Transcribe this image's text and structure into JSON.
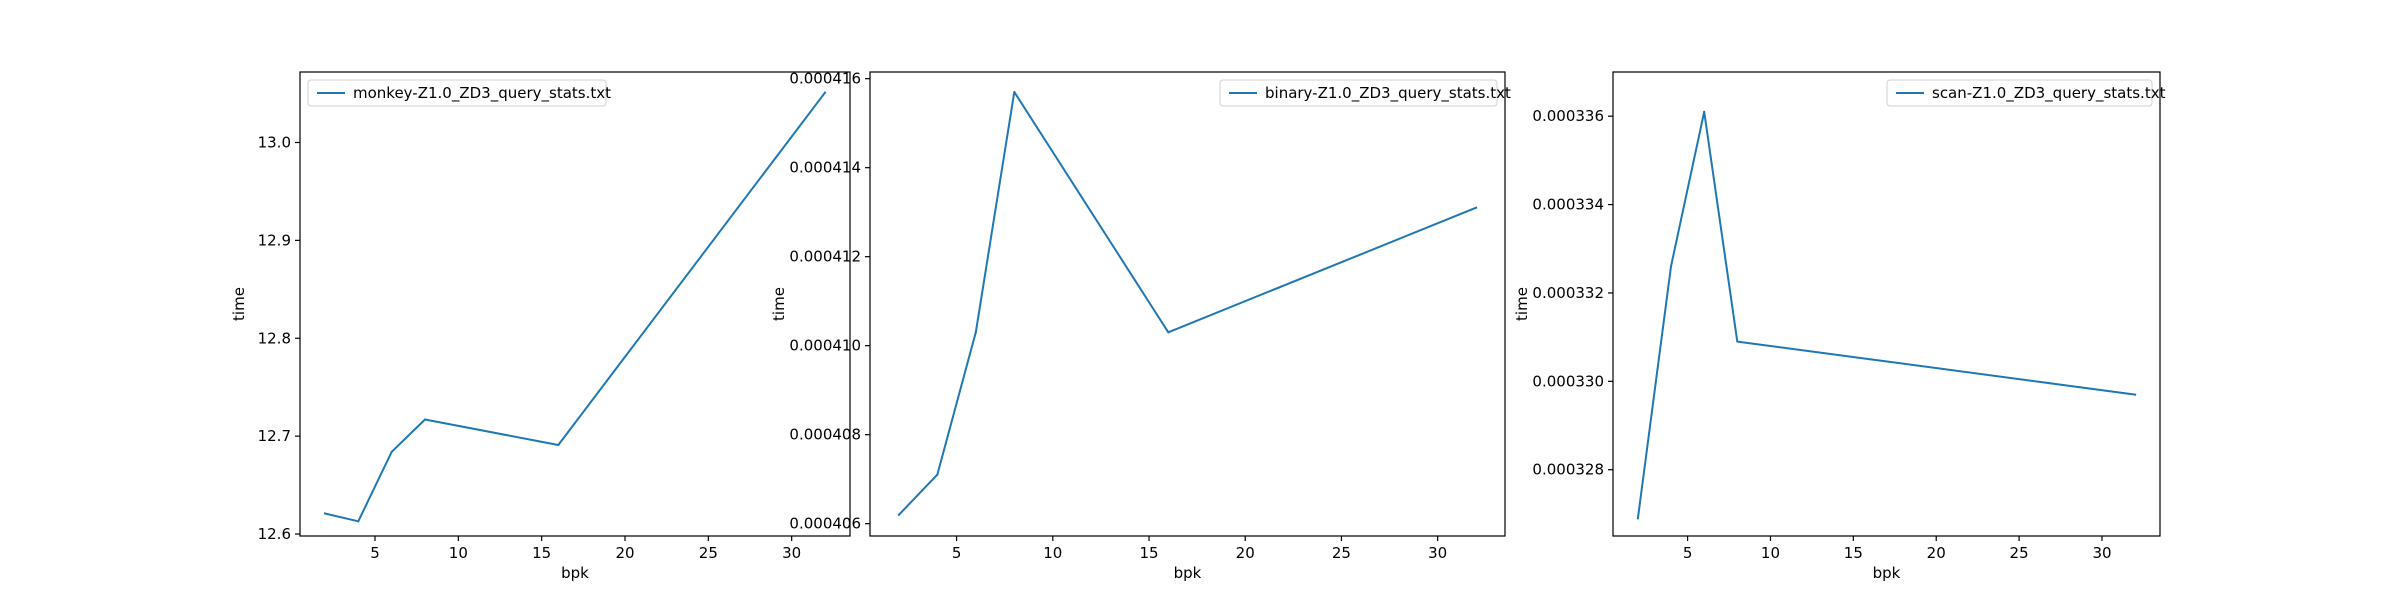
{
  "chart_data": [
    {
      "type": "line",
      "xlabel": "bpk",
      "ylabel": "time",
      "xlim": [
        0.5,
        33.5
      ],
      "ylim": [
        12.598,
        13.072
      ],
      "xticks": [
        "5",
        "10",
        "15",
        "20",
        "25",
        "30"
      ],
      "yticks": [
        "12.6",
        "12.7",
        "12.8",
        "12.9",
        "13.0"
      ],
      "legend_position": "upper-left",
      "color": "#1f77b4",
      "series": [
        {
          "name": "monkey-Z1.0_ZD3_query_stats.txt",
          "x": [
            2,
            4,
            6,
            8,
            16,
            32
          ],
          "y": [
            12.621,
            12.613,
            12.684,
            12.717,
            12.691,
            13.051
          ]
        }
      ]
    },
    {
      "type": "line",
      "xlabel": "bpk",
      "ylabel": "time",
      "xlim": [
        0.5,
        33.5
      ],
      "ylim": [
        0.000405723,
        0.00041615
      ],
      "xticks": [
        "5",
        "10",
        "15",
        "20",
        "25",
        "30"
      ],
      "yticks": [
        "0.000406",
        "0.000408",
        "0.000410",
        "0.000412",
        "0.000414",
        "0.000416"
      ],
      "legend_position": "upper-right",
      "color": "#1f77b4",
      "series": [
        {
          "name": "binary-Z1.0_ZD3_query_stats.txt",
          "x": [
            2,
            4,
            6,
            8,
            16,
            32
          ],
          "y": [
            0.0004062,
            0.0004071,
            0.0004103,
            0.0004157,
            0.0004103,
            0.0004131
          ]
        }
      ]
    },
    {
      "type": "line",
      "xlabel": "bpk",
      "ylabel": "time",
      "xlim": [
        0.5,
        33.5
      ],
      "ylim": [
        0.0003265,
        0.000337
      ],
      "xticks": [
        "5",
        "10",
        "15",
        "20",
        "25",
        "30"
      ],
      "yticks": [
        "0.000328",
        "0.000330",
        "0.000332",
        "0.000334",
        "0.000336"
      ],
      "legend_position": "upper-right",
      "color": "#1f77b4",
      "series": [
        {
          "name": "scan-Z1.0_ZD3_query_stats.txt",
          "x": [
            2,
            4,
            6,
            8,
            16,
            32
          ],
          "y": [
            0.0003269,
            0.0003326,
            0.0003361,
            0.0003309,
            0.0003305,
            0.0003297
          ]
        }
      ]
    }
  ]
}
